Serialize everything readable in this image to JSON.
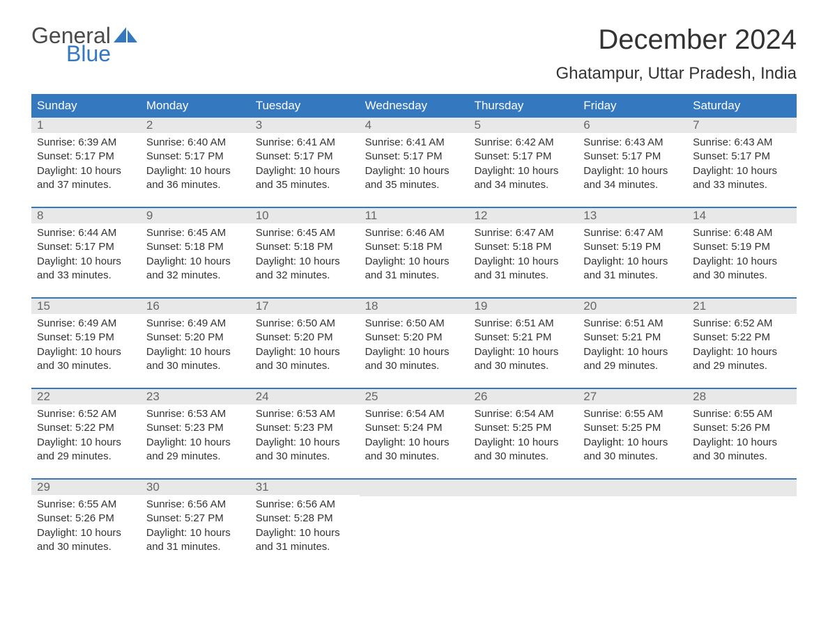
{
  "logo": {
    "word1": "General",
    "word2": "Blue",
    "text_color_general": "#4a4a4a",
    "text_color_blue": "#3478c0",
    "sail_color": "#3478c0"
  },
  "title": "December 2024",
  "location": "Ghatampur, Uttar Pradesh, India",
  "colors": {
    "header_bg": "#3478c0",
    "header_text": "#ffffff",
    "day_num_bg": "#e8e8e8",
    "day_num_text": "#666666",
    "body_text": "#333333",
    "week_border": "#3478c0",
    "page_bg": "#ffffff"
  },
  "typography": {
    "title_fontsize": 40,
    "location_fontsize": 24,
    "weekday_fontsize": 17,
    "daynum_fontsize": 17,
    "body_fontsize": 15
  },
  "weekdays": [
    "Sunday",
    "Monday",
    "Tuesday",
    "Wednesday",
    "Thursday",
    "Friday",
    "Saturday"
  ],
  "weeks": [
    [
      {
        "n": "1",
        "sr": "6:39 AM",
        "ss": "5:17 PM",
        "dl": "10 hours and 37 minutes."
      },
      {
        "n": "2",
        "sr": "6:40 AM",
        "ss": "5:17 PM",
        "dl": "10 hours and 36 minutes."
      },
      {
        "n": "3",
        "sr": "6:41 AM",
        "ss": "5:17 PM",
        "dl": "10 hours and 35 minutes."
      },
      {
        "n": "4",
        "sr": "6:41 AM",
        "ss": "5:17 PM",
        "dl": "10 hours and 35 minutes."
      },
      {
        "n": "5",
        "sr": "6:42 AM",
        "ss": "5:17 PM",
        "dl": "10 hours and 34 minutes."
      },
      {
        "n": "6",
        "sr": "6:43 AM",
        "ss": "5:17 PM",
        "dl": "10 hours and 34 minutes."
      },
      {
        "n": "7",
        "sr": "6:43 AM",
        "ss": "5:17 PM",
        "dl": "10 hours and 33 minutes."
      }
    ],
    [
      {
        "n": "8",
        "sr": "6:44 AM",
        "ss": "5:17 PM",
        "dl": "10 hours and 33 minutes."
      },
      {
        "n": "9",
        "sr": "6:45 AM",
        "ss": "5:18 PM",
        "dl": "10 hours and 32 minutes."
      },
      {
        "n": "10",
        "sr": "6:45 AM",
        "ss": "5:18 PM",
        "dl": "10 hours and 32 minutes."
      },
      {
        "n": "11",
        "sr": "6:46 AM",
        "ss": "5:18 PM",
        "dl": "10 hours and 31 minutes."
      },
      {
        "n": "12",
        "sr": "6:47 AM",
        "ss": "5:18 PM",
        "dl": "10 hours and 31 minutes."
      },
      {
        "n": "13",
        "sr": "6:47 AM",
        "ss": "5:19 PM",
        "dl": "10 hours and 31 minutes."
      },
      {
        "n": "14",
        "sr": "6:48 AM",
        "ss": "5:19 PM",
        "dl": "10 hours and 30 minutes."
      }
    ],
    [
      {
        "n": "15",
        "sr": "6:49 AM",
        "ss": "5:19 PM",
        "dl": "10 hours and 30 minutes."
      },
      {
        "n": "16",
        "sr": "6:49 AM",
        "ss": "5:20 PM",
        "dl": "10 hours and 30 minutes."
      },
      {
        "n": "17",
        "sr": "6:50 AM",
        "ss": "5:20 PM",
        "dl": "10 hours and 30 minutes."
      },
      {
        "n": "18",
        "sr": "6:50 AM",
        "ss": "5:20 PM",
        "dl": "10 hours and 30 minutes."
      },
      {
        "n": "19",
        "sr": "6:51 AM",
        "ss": "5:21 PM",
        "dl": "10 hours and 30 minutes."
      },
      {
        "n": "20",
        "sr": "6:51 AM",
        "ss": "5:21 PM",
        "dl": "10 hours and 29 minutes."
      },
      {
        "n": "21",
        "sr": "6:52 AM",
        "ss": "5:22 PM",
        "dl": "10 hours and 29 minutes."
      }
    ],
    [
      {
        "n": "22",
        "sr": "6:52 AM",
        "ss": "5:22 PM",
        "dl": "10 hours and 29 minutes."
      },
      {
        "n": "23",
        "sr": "6:53 AM",
        "ss": "5:23 PM",
        "dl": "10 hours and 29 minutes."
      },
      {
        "n": "24",
        "sr": "6:53 AM",
        "ss": "5:23 PM",
        "dl": "10 hours and 30 minutes."
      },
      {
        "n": "25",
        "sr": "6:54 AM",
        "ss": "5:24 PM",
        "dl": "10 hours and 30 minutes."
      },
      {
        "n": "26",
        "sr": "6:54 AM",
        "ss": "5:25 PM",
        "dl": "10 hours and 30 minutes."
      },
      {
        "n": "27",
        "sr": "6:55 AM",
        "ss": "5:25 PM",
        "dl": "10 hours and 30 minutes."
      },
      {
        "n": "28",
        "sr": "6:55 AM",
        "ss": "5:26 PM",
        "dl": "10 hours and 30 minutes."
      }
    ],
    [
      {
        "n": "29",
        "sr": "6:55 AM",
        "ss": "5:26 PM",
        "dl": "10 hours and 30 minutes."
      },
      {
        "n": "30",
        "sr": "6:56 AM",
        "ss": "5:27 PM",
        "dl": "10 hours and 31 minutes."
      },
      {
        "n": "31",
        "sr": "6:56 AM",
        "ss": "5:28 PM",
        "dl": "10 hours and 31 minutes."
      },
      null,
      null,
      null,
      null
    ]
  ],
  "labels": {
    "sunrise": "Sunrise: ",
    "sunset": "Sunset: ",
    "daylight": "Daylight: "
  }
}
